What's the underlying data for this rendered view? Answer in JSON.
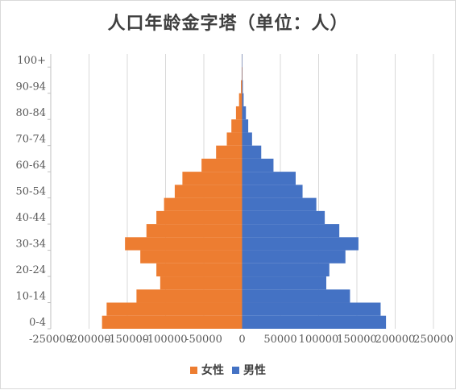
{
  "chart_data": {
    "type": "bar",
    "orientation": "horizontal",
    "title": "人口年龄金字塔（单位：人）",
    "categories": [
      "0-4",
      "5-9",
      "10-14",
      "15-19",
      "20-24",
      "25-29",
      "30-34",
      "35-39",
      "40-44",
      "45-49",
      "50-54",
      "55-59",
      "60-64",
      "65-69",
      "70-74",
      "75-79",
      "80-84",
      "85-89",
      "90-94",
      "95-99",
      "100+"
    ],
    "y_tick_labels": [
      "0-4",
      "10-14",
      "20-24",
      "30-34",
      "40-44",
      "50-54",
      "60-64",
      "70-74",
      "80-84",
      "90-94",
      "100+"
    ],
    "series": [
      {
        "name": "女性",
        "color": "#ED7D31",
        "values": [
          -183000,
          -177000,
          -138000,
          -107000,
          -112000,
          -133000,
          -153000,
          -125000,
          -112000,
          -102000,
          -88000,
          -78000,
          -53000,
          -34000,
          -20000,
          -14000,
          -8000,
          -4000,
          -1500,
          -500,
          -100
        ]
      },
      {
        "name": "男性",
        "color": "#4472C4",
        "values": [
          188000,
          181000,
          141000,
          110000,
          114000,
          135000,
          152000,
          127000,
          108000,
          97000,
          79000,
          70000,
          41000,
          25000,
          13000,
          8000,
          5000,
          2000,
          1000,
          300,
          100
        ]
      }
    ],
    "xlim": [
      -250000,
      250000
    ],
    "x_ticks": [
      -250000,
      -200000,
      -150000,
      -100000,
      -50000,
      0,
      50000,
      100000,
      150000,
      200000,
      250000
    ],
    "x_tick_labels": [
      "-250000",
      "-200000",
      "-150000",
      "-100000",
      "-50000",
      "0",
      "50000",
      "100000",
      "150000",
      "200000",
      "250000"
    ],
    "grid": "vertical",
    "legend_position": "bottom"
  }
}
